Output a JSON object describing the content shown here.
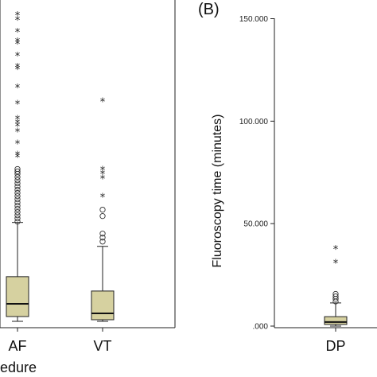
{
  "panels": {
    "a": {
      "xlabel_fragment": "edure"
    },
    "b": {
      "letter": "(B)",
      "ylabel": "Fluoroscopy time (minutes)"
    }
  },
  "chart_data": [
    {
      "panel": "A",
      "type": "box",
      "categories": [
        "AF",
        "VT"
      ],
      "xlabel": "edure",
      "boxes": [
        {
          "name": "AF",
          "whisker_low": 0,
          "q1": 6,
          "median": 22,
          "q3": 56,
          "whisker_high": 124,
          "outliers_circle": [
            125,
            129,
            133,
            137,
            141,
            145,
            149,
            153,
            157,
            161,
            165,
            169,
            173,
            177,
            181,
            185,
            188,
            191
          ],
          "outliers_star": [
            205,
            208,
            222,
            237,
            244,
            248,
            253,
            272,
            292,
            315,
            318,
            332,
            347,
            350,
            362,
            377,
            383
          ]
        },
        {
          "name": "VT",
          "whisker_low": 0,
          "q1": 2,
          "median": 10,
          "q3": 38,
          "whisker_high": 94,
          "outliers_circle": [
            100,
            105,
            110,
            132,
            140
          ],
          "outliers_star": [
            155,
            178,
            184,
            189,
            275
          ]
        }
      ]
    },
    {
      "panel": "B",
      "type": "box",
      "categories": [
        "DP"
      ],
      "ylabel": "Fluoroscopy time (minutes)",
      "ylim": [
        0,
        150
      ],
      "yticks": [
        ".000",
        "50.000",
        "100.000",
        "150.000"
      ],
      "boxes": [
        {
          "name": "DP",
          "whisker_low": 0,
          "q1": 0.8,
          "median": 2,
          "q3": 4.6,
          "whisker_high": 11.3,
          "outliers_circle": [
            12,
            13.3,
            14.5,
            15.7
          ],
          "outliers_star": [
            30.5,
            37.3
          ]
        }
      ]
    }
  ],
  "colors": {
    "box_fill": "#d6d1a0",
    "axis": "#222222"
  }
}
